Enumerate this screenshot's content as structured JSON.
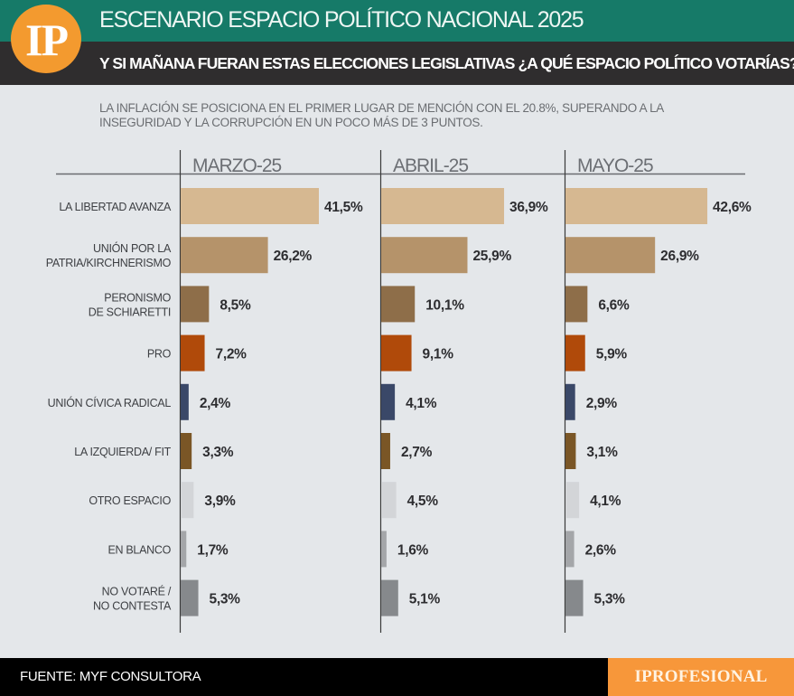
{
  "header": {
    "logo_text": "IP",
    "title": "ESCENARIO ESPACIO POLÍTICO NACIONAL 2025",
    "subtitle": "Y SI MAÑANA FUERAN ESTAS ELECCIONES LEGISLATIVAS ¿A QUÉ ESPACIO POLÍTICO VOTARÍAS?"
  },
  "note": "LA INFLACIÓN SE POSICIONA EN EL PRIMER LUGAR DE MENCIÓN CON EL 20.8%, SUPERANDO A LA INSEGURIDAD Y LA CORRUPCIÓN EN UN POCO MÁS DE 3 PUNTOS.",
  "footer": {
    "source": "FUENTE: MYF CONSULTORA",
    "brand": "IPROFESIONAL"
  },
  "chart_data": {
    "type": "bar",
    "orientation": "horizontal",
    "title": "Y SI MAÑANA FUERAN ESTAS ELECCIONES LEGISLATIVAS ¿A QUÉ ESPACIO POLÍTICO VOTARÍAS?",
    "xlabel": "",
    "ylabel": "",
    "unit": "%",
    "categories": [
      "LA LIBERTAD AVANZA",
      "UNIÓN POR LA PATRIA/KIRCHNERISMO",
      "PERONISMO DE SCHIARETTI",
      "PRO",
      "UNIÓN CÍVICA RADICAL",
      "LA IZQUIERDA/ FIT",
      "OTRO ESPACIO",
      "EN BLANCO",
      "NO VOTARÉ / NO CONTESTA"
    ],
    "category_lines": [
      [
        "LA LIBERTAD AVANZA"
      ],
      [
        "UNIÓN POR LA",
        "PATRIA/KIRCHNERISMO"
      ],
      [
        "PERONISMO",
        "DE SCHIARETTI"
      ],
      [
        "PRO"
      ],
      [
        "UNIÓN CÍVICA RADICAL"
      ],
      [
        "LA IZQUIERDA/ FIT"
      ],
      [
        "OTRO ESPACIO"
      ],
      [
        "EN BLANCO"
      ],
      [
        "NO VOTARÉ /",
        "NO CONTESTA"
      ]
    ],
    "colors": [
      "#d6b891",
      "#b5936a",
      "#8e6e49",
      "#b04a0a",
      "#3a4868",
      "#7a5626",
      "#d3d5d8",
      "#a4a6a9",
      "#86898c"
    ],
    "series": [
      {
        "name": "MARZO-25",
        "values": [
          41.5,
          26.2,
          8.5,
          7.2,
          2.4,
          3.3,
          3.9,
          1.7,
          5.3
        ],
        "labels": [
          "41,5%",
          "26,2%",
          "8,5%",
          "7,2%",
          "2,4%",
          "3,3%",
          "3,9%",
          "1,7%",
          "5,3%"
        ]
      },
      {
        "name": "ABRIL-25",
        "values": [
          36.9,
          25.9,
          10.1,
          9.1,
          4.1,
          2.7,
          4.5,
          1.6,
          5.1
        ],
        "labels": [
          "36,9%",
          "25,9%",
          "10,1%",
          "9,1%",
          "4,1%",
          "2,7%",
          "4,5%",
          "1,6%",
          "5,1%"
        ]
      },
      {
        "name": "MAYO-25",
        "values": [
          42.6,
          26.9,
          6.6,
          5.9,
          2.9,
          3.1,
          4.1,
          2.6,
          5.3
        ],
        "labels": [
          "42,6%",
          "26,9%",
          "6,6%",
          "5,9%",
          "2,9%",
          "3,1%",
          "4,1%",
          "2,6%",
          "5,3%"
        ]
      }
    ],
    "xlim": [
      0,
      45
    ],
    "grid": false,
    "legend": "none"
  }
}
